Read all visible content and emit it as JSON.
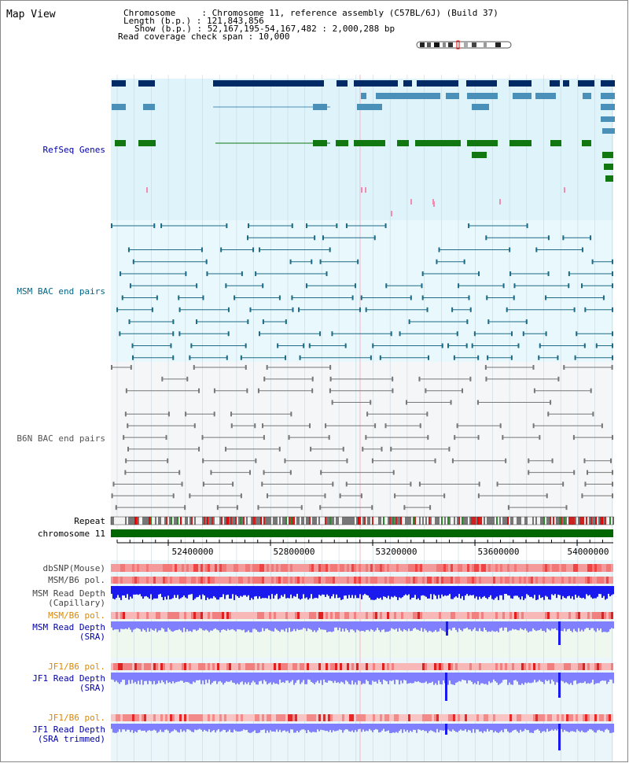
{
  "header": {
    "view_title": "Map View",
    "info_lines": [
      "Chromosome     : Chromosome 11, reference assembly (C57BL/6J) (Build 37)",
      "Length (b.p.) : 121,843,856",
      "Show (b.p.) : 52,167,195-54,167,482 : 2,000,288 bp",
      "Read coverage check span : 10,000"
    ]
  },
  "tracks": {
    "refseq": "RefSeq Genes",
    "msm_bac": "MSM BAC end pairs",
    "b6n_bac": "B6N BAC end pairs",
    "repeat": "Repeat",
    "chromosome": "chromosome 11",
    "dbsnp": "dbSNP(Mouse)",
    "msm_b6_pol_1": "MSM/B6 pol.",
    "msm_depth_cap": [
      "MSM Read Depth",
      "(Capillary)"
    ],
    "msm_b6_pol_2": "MSM/B6 pol.",
    "msm_depth_sra": [
      "MSM Read Depth",
      "(SRA)"
    ],
    "jf1_b6_pol_1": "JF1/B6 pol.",
    "jf1_depth_sra": [
      "JF1 Read Depth",
      "(SRA)"
    ],
    "jf1_b6_pol_2": "JF1/B6 pol.",
    "jf1_depth_trim": [
      "JF1 Read Depth",
      "(SRA trimmed)"
    ]
  },
  "axis": {
    "ticks": [
      "52400000",
      "52800000",
      "53200000",
      "53600000",
      "54000000"
    ]
  },
  "colors": {
    "label_blue": "#0000aa",
    "label_teal": "#006688",
    "label_gray": "#444444",
    "label_orange": "#dd8800",
    "refseq_bg": "#dff3fb",
    "msm_bg": "#e8f8fc",
    "b6n_bg": "#f4f6f8",
    "chrom_green": "#006600",
    "gene_navy": "#002a66",
    "gene_mid": "#4a90b8",
    "gene_green": "#117711",
    "depth_blue": "#1a1aee",
    "depth_light": "#8080ff"
  }
}
